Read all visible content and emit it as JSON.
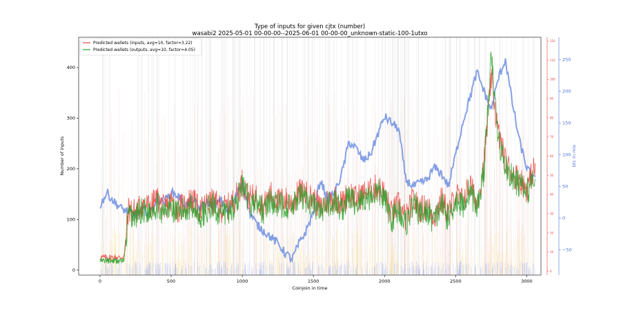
{
  "chart_data": {
    "type": "line",
    "title": "Type of inputs for given cjtx (number)",
    "subtitle": "wasabi2 2025-05-01 00-00-00--2025-06-01 00-00-00_unknown-static-100-1utxo",
    "xlabel": "Coinjoin in time",
    "ylabel": "Number of inputs",
    "y2label": "btc in mix",
    "xlim": [
      -150,
      3100
    ],
    "ylim": [
      -10,
      460
    ],
    "y2lim": [
      -90,
      285
    ],
    "yredlim": [
      -2,
      122
    ],
    "x_ticks": [
      0,
      500,
      1000,
      1500,
      2000,
      2500,
      3000
    ],
    "y_ticks": [
      0,
      100,
      200,
      300,
      400
    ],
    "y2_ticks": [
      -50,
      0,
      50,
      100,
      150,
      200,
      250
    ],
    "yred_ticks": [
      0,
      10,
      20,
      30,
      40,
      50,
      60,
      70,
      80,
      90,
      100,
      110,
      120
    ],
    "legend_position": "top-left",
    "series": [
      {
        "name": "Predicted wallets (inputs, avg=10, factor=3.22)",
        "color": "#e8473f",
        "x": [
          0,
          150,
          170,
          200,
          250,
          300,
          350,
          400,
          450,
          500,
          550,
          600,
          650,
          700,
          750,
          800,
          850,
          900,
          950,
          1000,
          1050,
          1100,
          1150,
          1200,
          1250,
          1300,
          1350,
          1400,
          1450,
          1500,
          1550,
          1600,
          1650,
          1700,
          1750,
          1800,
          1850,
          1900,
          1950,
          2000,
          2050,
          2100,
          2150,
          2200,
          2250,
          2300,
          2350,
          2400,
          2450,
          2500,
          2550,
          2600,
          2650,
          2700,
          2750,
          2800,
          2850,
          2900,
          2950,
          3000,
          3050
        ],
        "y": [
          25,
          25,
          28,
          120,
          115,
          130,
          125,
          140,
          120,
          135,
          120,
          130,
          140,
          115,
          130,
          135,
          120,
          125,
          140,
          175,
          140,
          145,
          125,
          150,
          135,
          140,
          130,
          155,
          150,
          140,
          120,
          135,
          145,
          130,
          155,
          140,
          150,
          155,
          165,
          150,
          110,
          130,
          100,
          140,
          120,
          125,
          105,
          140,
          110,
          150,
          135,
          170,
          130,
          210,
          380,
          270,
          215,
          190,
          180,
          160,
          200
        ]
      },
      {
        "name": "Predicted wallets (outputs, avg=10, factor=4.05)",
        "color": "#2ca02c",
        "x": [
          0,
          150,
          170,
          200,
          250,
          300,
          350,
          400,
          450,
          500,
          550,
          600,
          650,
          700,
          750,
          800,
          850,
          900,
          950,
          1000,
          1050,
          1100,
          1150,
          1200,
          1250,
          1300,
          1350,
          1400,
          1450,
          1500,
          1550,
          1600,
          1650,
          1700,
          1750,
          1800,
          1850,
          1900,
          1950,
          2000,
          2050,
          2100,
          2150,
          2200,
          2250,
          2300,
          2350,
          2400,
          2450,
          2500,
          2550,
          2600,
          2650,
          2700,
          2750,
          2800,
          2850,
          2900,
          2950,
          3000,
          3050
        ],
        "y": [
          18,
          18,
          20,
          110,
          105,
          120,
          115,
          130,
          110,
          125,
          110,
          120,
          130,
          105,
          120,
          125,
          110,
          115,
          130,
          165,
          130,
          135,
          115,
          140,
          125,
          130,
          120,
          145,
          140,
          130,
          110,
          125,
          135,
          120,
          145,
          130,
          140,
          145,
          155,
          140,
          100,
          120,
          90,
          130,
          110,
          115,
          95,
          130,
          100,
          140,
          125,
          160,
          120,
          200,
          420,
          260,
          205,
          180,
          170,
          150,
          190
        ]
      },
      {
        "name": "btc in mix",
        "color": "#6f8fe0",
        "x": [
          0,
          50,
          100,
          150,
          200,
          250,
          300,
          350,
          400,
          450,
          500,
          550,
          600,
          650,
          700,
          750,
          800,
          850,
          900,
          950,
          1000,
          1050,
          1100,
          1150,
          1200,
          1250,
          1300,
          1350,
          1400,
          1450,
          1500,
          1550,
          1600,
          1650,
          1700,
          1750,
          1800,
          1850,
          1900,
          1950,
          2000,
          2050,
          2100,
          2150,
          2200,
          2250,
          2300,
          2350,
          2400,
          2450,
          2500,
          2550,
          2600,
          2650,
          2700,
          2750,
          2800,
          2850,
          2900,
          2950,
          3000,
          3050
        ],
        "y": [
          20,
          40,
          25,
          15,
          10,
          5,
          12,
          8,
          30,
          25,
          40,
          35,
          20,
          30,
          15,
          25,
          20,
          28,
          10,
          30,
          60,
          10,
          -10,
          -20,
          -30,
          -40,
          -55,
          -65,
          -40,
          -20,
          10,
          60,
          30,
          40,
          70,
          120,
          110,
          90,
          100,
          130,
          160,
          150,
          140,
          60,
          50,
          55,
          60,
          80,
          70,
          50,
          100,
          150,
          190,
          230,
          200,
          170,
          220,
          250,
          180,
          120,
          80,
          60
        ]
      }
    ]
  }
}
